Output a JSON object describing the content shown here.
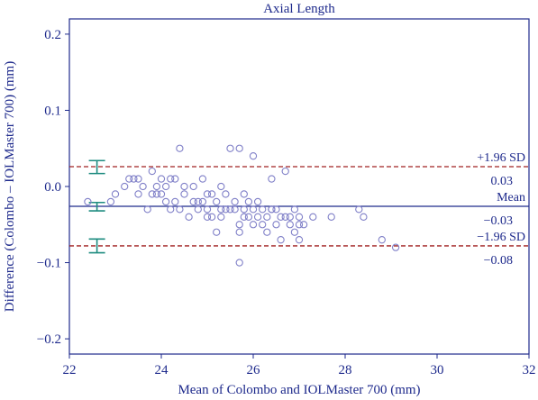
{
  "chart_data": {
    "type": "scatter",
    "title": "Axial Length",
    "xlabel": "Mean of Colombo and IOLMaster 700 (mm)",
    "ylabel": "Difference (Colombo – IOLMaster 700) (mm)",
    "xlim": [
      22,
      32
    ],
    "ylim": [
      -0.22,
      0.22
    ],
    "xticks": [
      "22",
      "24",
      "26",
      "28",
      "30",
      "32"
    ],
    "yticks": [
      "0.2",
      "0.1",
      "0.0",
      "−0.1",
      "−0.2"
    ],
    "ytick_values": [
      0.2,
      0.1,
      0.0,
      -0.1,
      -0.2
    ],
    "xtick_values": [
      22,
      24,
      26,
      28,
      30,
      32
    ],
    "reference_lines": {
      "upper": {
        "label": "+1.96 SD",
        "value_label": "0.03",
        "value": 0.026
      },
      "mean": {
        "label": "Mean",
        "value_label": "−0.03",
        "value": -0.026
      },
      "lower": {
        "label": "−1.96 SD",
        "value_label": "−0.08",
        "value": -0.078
      }
    },
    "confidence_intervals": [
      {
        "line": "upper",
        "x": 22.6,
        "low": 0.017,
        "high": 0.034
      },
      {
        "line": "mean",
        "x": 22.6,
        "low": -0.032,
        "high": -0.021
      },
      {
        "line": "lower",
        "x": 22.6,
        "low": -0.087,
        "high": -0.069
      }
    ],
    "points": [
      [
        22.4,
        -0.02
      ],
      [
        22.9,
        -0.02
      ],
      [
        23.0,
        -0.01
      ],
      [
        23.2,
        0.0
      ],
      [
        23.3,
        0.01
      ],
      [
        23.4,
        0.01
      ],
      [
        23.5,
        -0.01
      ],
      [
        23.5,
        0.01
      ],
      [
        23.6,
        0.0
      ],
      [
        23.7,
        -0.03
      ],
      [
        23.8,
        0.02
      ],
      [
        23.8,
        -0.01
      ],
      [
        23.9,
        -0.01
      ],
      [
        23.9,
        0.0
      ],
      [
        24.0,
        0.01
      ],
      [
        24.0,
        -0.01
      ],
      [
        24.1,
        -0.02
      ],
      [
        24.1,
        0.0
      ],
      [
        24.2,
        0.01
      ],
      [
        24.2,
        -0.03
      ],
      [
        24.3,
        0.01
      ],
      [
        24.3,
        -0.02
      ],
      [
        24.4,
        0.05
      ],
      [
        24.4,
        -0.03
      ],
      [
        24.5,
        -0.01
      ],
      [
        24.5,
        0.0
      ],
      [
        24.6,
        -0.04
      ],
      [
        24.7,
        -0.02
      ],
      [
        24.7,
        0.0
      ],
      [
        24.8,
        -0.03
      ],
      [
        24.8,
        -0.02
      ],
      [
        24.9,
        -0.02
      ],
      [
        24.9,
        0.01
      ],
      [
        25.0,
        -0.01
      ],
      [
        25.0,
        -0.04
      ],
      [
        25.1,
        -0.01
      ],
      [
        25.1,
        -0.04
      ],
      [
        25.2,
        -0.06
      ],
      [
        25.2,
        -0.02
      ],
      [
        25.3,
        -0.03
      ],
      [
        25.3,
        0.0
      ],
      [
        25.3,
        -0.04
      ],
      [
        25.4,
        -0.01
      ],
      [
        25.4,
        -0.03
      ],
      [
        25.5,
        -0.03
      ],
      [
        25.5,
        0.05
      ],
      [
        25.6,
        -0.03
      ],
      [
        25.6,
        -0.02
      ],
      [
        25.7,
        0.05
      ],
      [
        25.7,
        -0.05
      ],
      [
        25.7,
        -0.06
      ],
      [
        25.8,
        -0.01
      ],
      [
        25.8,
        -0.03
      ],
      [
        25.8,
        -0.04
      ],
      [
        25.9,
        -0.04
      ],
      [
        25.9,
        -0.02
      ],
      [
        26.0,
        0.04
      ],
      [
        26.0,
        -0.03
      ],
      [
        26.0,
        -0.05
      ],
      [
        26.1,
        -0.04
      ],
      [
        26.1,
        -0.02
      ],
      [
        26.2,
        -0.05
      ],
      [
        26.2,
        -0.03
      ],
      [
        26.3,
        -0.04
      ],
      [
        26.3,
        -0.06
      ],
      [
        26.4,
        -0.03
      ],
      [
        26.4,
        0.01
      ],
      [
        26.5,
        -0.03
      ],
      [
        26.5,
        -0.05
      ],
      [
        26.6,
        -0.04
      ],
      [
        26.6,
        -0.07
      ],
      [
        26.7,
        0.02
      ],
      [
        26.7,
        -0.04
      ],
      [
        26.8,
        -0.05
      ],
      [
        26.8,
        -0.04
      ],
      [
        26.9,
        -0.03
      ],
      [
        26.9,
        -0.06
      ],
      [
        27.0,
        -0.04
      ],
      [
        27.0,
        -0.07
      ],
      [
        27.1,
        -0.05
      ],
      [
        27.3,
        -0.04
      ],
      [
        27.7,
        -0.04
      ],
      [
        28.3,
        -0.03
      ],
      [
        28.4,
        -0.04
      ],
      [
        28.8,
        -0.07
      ],
      [
        29.1,
        -0.08
      ],
      [
        25.7,
        -0.1
      ],
      [
        26.4,
        -0.03
      ],
      [
        27.0,
        -0.05
      ],
      [
        25.0,
        -0.03
      ]
    ]
  }
}
